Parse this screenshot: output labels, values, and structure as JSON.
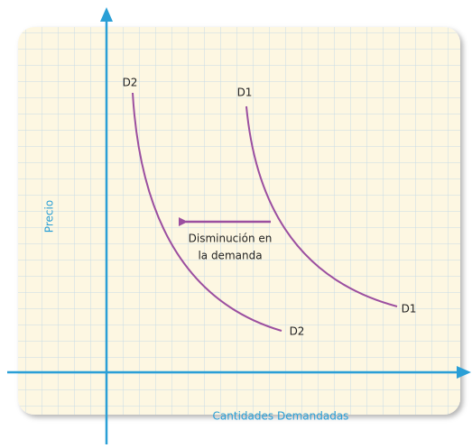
{
  "axes": {
    "y_label": "Precio",
    "x_label": "Cantidades Demandadas"
  },
  "curves": [
    {
      "start_label": "D1",
      "end_label": "D1"
    },
    {
      "start_label": "D2",
      "end_label": "D2"
    }
  ],
  "annotation": [
    "Disminución en",
    "la demanda"
  ]
}
